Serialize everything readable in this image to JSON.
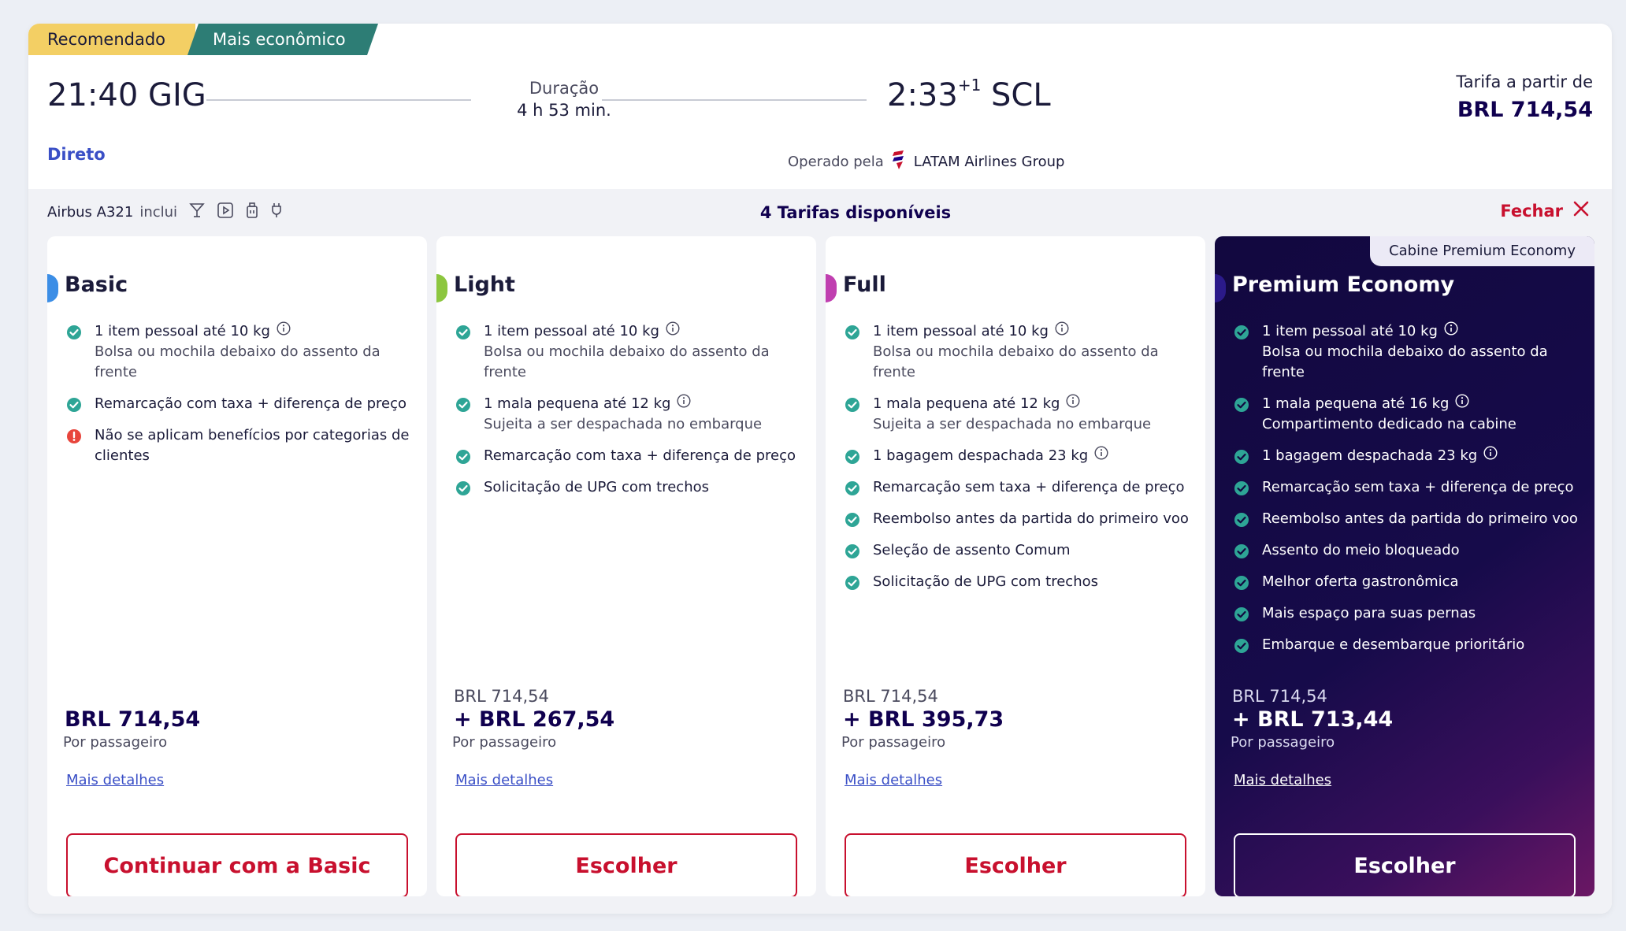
{
  "flight": {
    "tag_recommended": "Recomendado",
    "tag_cheapest": "Mais econômico",
    "departure_time": "21:40",
    "departure_airport": "GIG",
    "duration_label": "Duração",
    "duration_value": "4 h 53 min.",
    "arrival_time": "2:33",
    "arrival_day_offset": "+1",
    "arrival_airport": "SCL",
    "price_from_label": "Tarifa a partir de",
    "price_from_value": "BRL 714,54",
    "stops": "Direto",
    "operated_by_label": "Operado pela",
    "airline": "LATAM Airlines Group"
  },
  "fares_header": {
    "aircraft": "Airbus A321",
    "includes_label": "inclui",
    "amenity_icons": [
      "cocktail-icon",
      "video-icon",
      "usb-icon",
      "power-plug-icon"
    ],
    "fares_count": "4 Tarifas disponíveis",
    "close_label": "Fechar"
  },
  "fares": [
    {
      "name": "Basic",
      "color": "#3c8ee6",
      "features": [
        {
          "text": "1 item pessoal até 10 kg",
          "sub": "Bolsa ou mochila debaixo do assento da frente",
          "info": true,
          "status": "included"
        },
        {
          "text": "Remarcação com taxa + diferença de preço",
          "sub": "",
          "info": false,
          "status": "included"
        },
        {
          "text": "Não se aplicam benefícios por categorias de clientes",
          "sub": "",
          "info": false,
          "status": "warning"
        }
      ],
      "base_price": "",
      "price": "BRL 714,54",
      "per_passenger": "Por passageiro",
      "details_link": "Mais detalhes",
      "button": "Continuar com a Basic"
    },
    {
      "name": "Light",
      "color": "#8cc63f",
      "features": [
        {
          "text": "1 item pessoal até 10 kg",
          "sub": "Bolsa ou mochila debaixo do assento da frente",
          "info": true,
          "status": "included"
        },
        {
          "text": "1 mala pequena até 12 kg",
          "sub": "Sujeita a ser despachada no embarque",
          "info": true,
          "status": "included"
        },
        {
          "text": "Remarcação com taxa + diferença de preço",
          "sub": "",
          "info": false,
          "status": "included"
        },
        {
          "text": "Solicitação de UPG com trechos",
          "sub": "",
          "info": false,
          "status": "included"
        }
      ],
      "base_price": "BRL 714,54",
      "price": "+ BRL 267,54",
      "per_passenger": "Por passageiro",
      "details_link": "Mais detalhes",
      "button": "Escolher"
    },
    {
      "name": "Full",
      "color": "#c03fb0",
      "features": [
        {
          "text": "1 item pessoal até 10 kg",
          "sub": "Bolsa ou mochila debaixo do assento da frente",
          "info": true,
          "status": "included"
        },
        {
          "text": "1 mala pequena até 12 kg",
          "sub": "Sujeita a ser despachada no embarque",
          "info": true,
          "status": "included"
        },
        {
          "text": "1 bagagem despachada 23 kg",
          "sub": "",
          "info": true,
          "status": "included"
        },
        {
          "text": "Remarcação sem taxa + diferença de preço",
          "sub": "",
          "info": false,
          "status": "included"
        },
        {
          "text": "Reembolso antes da partida do primeiro voo",
          "sub": "",
          "info": false,
          "status": "included"
        },
        {
          "text": "Seleção de assento Comum",
          "sub": "",
          "info": false,
          "status": "included"
        },
        {
          "text": "Solicitação de UPG com trechos",
          "sub": "",
          "info": false,
          "status": "included"
        }
      ],
      "base_price": "BRL 714,54",
      "price": "+ BRL 395,73",
      "per_passenger": "Por passageiro",
      "details_link": "Mais detalhes",
      "button": "Escolher"
    },
    {
      "name": "Premium Economy",
      "color": "#2b1a8a",
      "badge": "Cabine Premium Economy",
      "features": [
        {
          "text": "1 item pessoal até 10 kg",
          "sub": "Bolsa ou mochila debaixo do assento da frente",
          "info": true,
          "status": "included"
        },
        {
          "text": "1 mala pequena até 16 kg",
          "sub": "Compartimento dedicado na cabine",
          "info": true,
          "status": "included"
        },
        {
          "text": "1 bagagem despachada 23 kg",
          "sub": "",
          "info": true,
          "status": "included"
        },
        {
          "text": "Remarcação sem taxa + diferença de preço",
          "sub": "",
          "info": false,
          "status": "included"
        },
        {
          "text": "Reembolso antes da partida do primeiro voo",
          "sub": "",
          "info": false,
          "status": "included"
        },
        {
          "text": "Assento do meio bloqueado",
          "sub": "",
          "info": false,
          "status": "included"
        },
        {
          "text": "Melhor oferta gastronômica",
          "sub": "",
          "info": false,
          "status": "included"
        },
        {
          "text": "Mais espaço para suas pernas",
          "sub": "",
          "info": false,
          "status": "included"
        },
        {
          "text": "Embarque e desembarque prioritário",
          "sub": "",
          "info": false,
          "status": "included"
        }
      ],
      "base_price": "BRL 714,54",
      "price": "+ BRL 713,44",
      "per_passenger": "Por passageiro",
      "details_link": "Mais detalhes",
      "button": "Escolher"
    }
  ],
  "colors": {
    "check": "#2ea596",
    "warning": "#e8453c",
    "accent_red": "#c8102e",
    "navy": "#10004f",
    "link": "#3a4fc6"
  }
}
